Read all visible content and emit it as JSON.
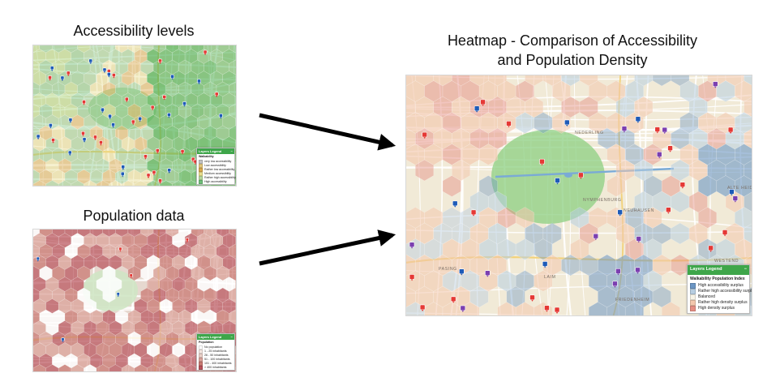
{
  "panels": {
    "accessibility": {
      "title": "Accessibility levels",
      "legend": {
        "title": "Layers Legend",
        "subtitle": "Walkability",
        "items": [
          {
            "label": "very low accessibility",
            "color": "#c2c2c2"
          },
          {
            "label": "Low accessibility",
            "color": "#e2c67a"
          },
          {
            "label": "Rather low accessibility",
            "color": "#d9a94d"
          },
          {
            "label": "Medium accessibility",
            "color": "#e8dd8c"
          },
          {
            "label": "Rather high accessibility",
            "color": "#b7d79a"
          },
          {
            "label": "High accessibility",
            "color": "#6fbf78"
          }
        ]
      }
    },
    "population": {
      "title": "Population data",
      "legend": {
        "title": "Layers Legend",
        "subtitle": "Population",
        "items": [
          {
            "label": "No population",
            "color": "#ffffff"
          },
          {
            "label": "1 - 25 inhabitants",
            "color": "#f4e6e1"
          },
          {
            "label": "26 - 50 inhabitants",
            "color": "#ead0c8"
          },
          {
            "label": "51 - 100 inhabitants",
            "color": "#dba39a"
          },
          {
            "label": "101 - 400 inhabitants",
            "color": "#c97a73"
          },
          {
            "label": "> 400 inhabitants",
            "color": "#b8515a"
          }
        ]
      }
    },
    "heatmap": {
      "title_line1": "Heatmap - Comparison of Accessibility",
      "title_line2": "and Population Density",
      "legend": {
        "title": "Layers Legend",
        "subtitle": "Walkability Population Index",
        "items": [
          {
            "label": "High accessibility surplus",
            "color": "#6b96c4"
          },
          {
            "label": "Rather high accessibility surplus",
            "color": "#b7cde0"
          },
          {
            "label": "Balanced",
            "color": "#f7f3e6"
          },
          {
            "label": "Rather high density surplus",
            "color": "#f3c7ad"
          },
          {
            "label": "High density surplus",
            "color": "#e58e83"
          }
        ]
      },
      "map_labels": {
        "district_1": "NEUHAUSEN",
        "district_2": "NYMPHENBURG",
        "district_3": "FRIEDENHEIM",
        "district_4": "LAIM",
        "district_5": "NEDERLING",
        "district_6": "PASING",
        "district_7": "WESTEND",
        "district_8": "ALTE HEIDE"
      }
    }
  },
  "icons": {
    "collapse": "−",
    "flow_arrows": "arrow-right-icon"
  }
}
